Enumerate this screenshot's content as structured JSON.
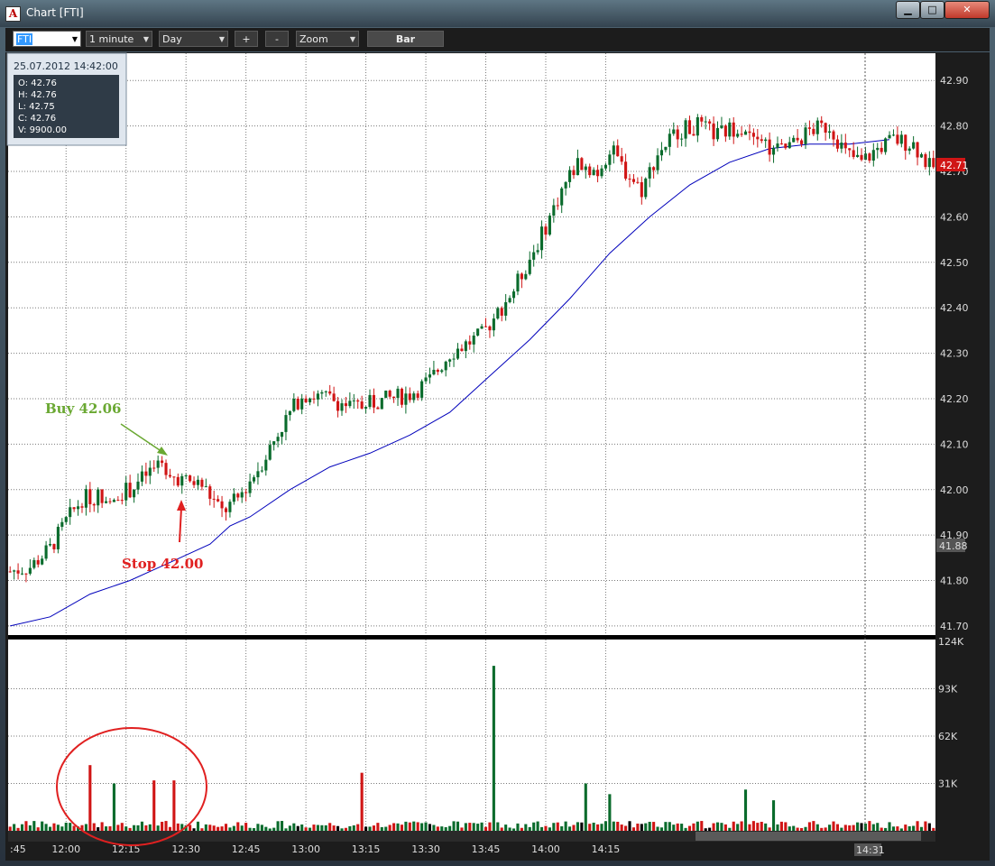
{
  "window": {
    "title": "Chart [FTI]",
    "app_icon_letter": "A",
    "min_glyph": "▁",
    "max_glyph": "□",
    "close_glyph": "✕"
  },
  "toolbar": {
    "symbol": "FTI",
    "interval": "1 minute",
    "period": "Day",
    "zoom_in": "+",
    "zoom_out": "-",
    "zoom": "Zoom",
    "chart_style": "Bar",
    "dropdown_glyph": "▼"
  },
  "info_box": {
    "datetime": "25.07.2012 14:42:00",
    "open": "O: 42.76",
    "high": "H: 42.76",
    "low": "L: 42.75",
    "close": "C: 42.76",
    "volume": "V: 9900.00"
  },
  "annotations": {
    "buy": "Buy 42.06",
    "stop": "Stop 42.00"
  },
  "colors": {
    "up": "#0a6b2c",
    "down": "#d01515",
    "ma": "#0000bb",
    "buy_text": "#6aa832",
    "stop_text": "#e02020",
    "circle": "#e02020",
    "price_tag": "#d01515",
    "grid": "#7a7a7a",
    "panel_bg": "#ffffff"
  },
  "chart_data": {
    "type": "candlestick",
    "symbol": "FTI",
    "interval": "1 minute",
    "price_axis": {
      "range": [
        41.68,
        42.96
      ],
      "ticks": [
        "42.90",
        "42.80",
        "42.70",
        "42.60",
        "42.50",
        "42.40",
        "42.30",
        "42.20",
        "42.10",
        "42.00",
        "41.90",
        "41.80",
        "41.70"
      ]
    },
    "volume_axis": {
      "range": [
        0,
        124000
      ],
      "ticks": [
        "124K",
        "93K",
        "62K",
        "31K"
      ]
    },
    "time_axis": {
      "start_label": ":45",
      "labels": [
        "12:00",
        "12:15",
        "12:30",
        "12:45",
        "13:00",
        "13:15",
        "13:30",
        "13:45",
        "14:00",
        "14:15"
      ]
    },
    "current_price_tag": "42.71",
    "level_tag": "41.88",
    "crosshair_time_tag": "14:31",
    "price_keypoints": [
      [
        0,
        41.82
      ],
      [
        5,
        41.83
      ],
      [
        10,
        41.87
      ],
      [
        14,
        41.93
      ],
      [
        18,
        41.98
      ],
      [
        25,
        41.99
      ],
      [
        30,
        42.0
      ],
      [
        35,
        42.04
      ],
      [
        39,
        42.05
      ],
      [
        43,
        42.02
      ],
      [
        48,
        42.01
      ],
      [
        53,
        41.95
      ],
      [
        57,
        41.98
      ],
      [
        63,
        42.06
      ],
      [
        68,
        42.14
      ],
      [
        73,
        42.21
      ],
      [
        80,
        42.2
      ],
      [
        86,
        42.18
      ],
      [
        95,
        42.2
      ],
      [
        100,
        42.21
      ],
      [
        105,
        42.24
      ],
      [
        110,
        42.3
      ],
      [
        118,
        42.34
      ],
      [
        126,
        42.44
      ],
      [
        133,
        42.56
      ],
      [
        138,
        42.66
      ],
      [
        142,
        42.72
      ],
      [
        147,
        42.7
      ],
      [
        150,
        42.75
      ],
      [
        154,
        42.7
      ],
      [
        158,
        42.66
      ],
      [
        162,
        42.74
      ],
      [
        167,
        42.79
      ],
      [
        172,
        42.8
      ],
      [
        177,
        42.78
      ],
      [
        182,
        42.8
      ],
      [
        187,
        42.79
      ],
      [
        191,
        42.74
      ],
      [
        196,
        42.76
      ],
      [
        200,
        42.79
      ],
      [
        205,
        42.8
      ],
      [
        209,
        42.74
      ],
      [
        213,
        42.72
      ],
      [
        217,
        42.75
      ],
      [
        221,
        42.77
      ],
      [
        226,
        42.76
      ],
      [
        230,
        42.71
      ]
    ],
    "moving_average_keypoints": [
      [
        0,
        41.7
      ],
      [
        10,
        41.72
      ],
      [
        20,
        41.77
      ],
      [
        30,
        41.8
      ],
      [
        40,
        41.84
      ],
      [
        50,
        41.88
      ],
      [
        55,
        41.92
      ],
      [
        60,
        41.94
      ],
      [
        70,
        42.0
      ],
      [
        80,
        42.05
      ],
      [
        90,
        42.08
      ],
      [
        100,
        42.12
      ],
      [
        110,
        42.17
      ],
      [
        120,
        42.25
      ],
      [
        130,
        42.33
      ],
      [
        140,
        42.42
      ],
      [
        150,
        42.52
      ],
      [
        160,
        42.6
      ],
      [
        170,
        42.67
      ],
      [
        180,
        42.72
      ],
      [
        190,
        42.75
      ],
      [
        200,
        42.76
      ],
      [
        210,
        42.76
      ],
      [
        220,
        42.77
      ]
    ],
    "volume_spikes": [
      [
        20,
        43000
      ],
      [
        26,
        31000
      ],
      [
        36,
        33000
      ],
      [
        41,
        33000
      ],
      [
        88,
        38000
      ],
      [
        121,
        108000
      ],
      [
        144,
        31000
      ],
      [
        150,
        24000
      ],
      [
        184,
        27000
      ],
      [
        191,
        20000
      ]
    ]
  }
}
